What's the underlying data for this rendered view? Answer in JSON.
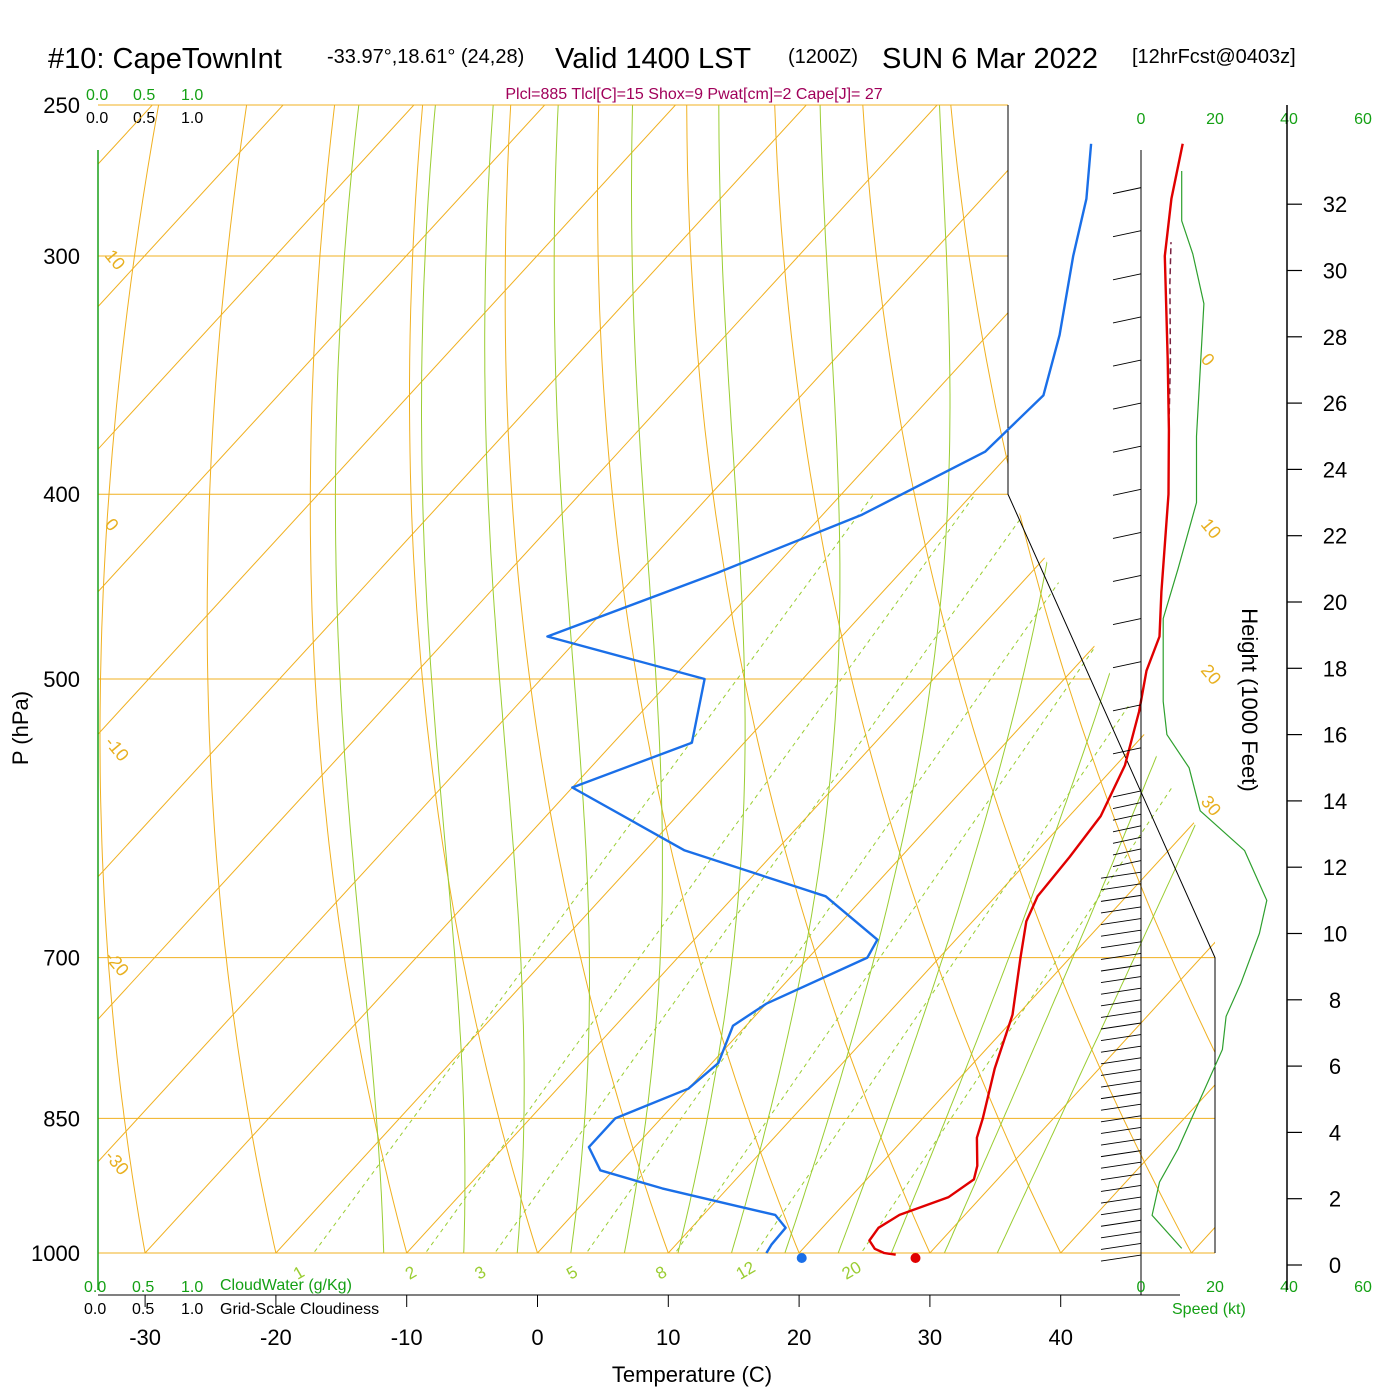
{
  "header": {
    "station": "#10: CapeTownInt",
    "coords": "-33.97°,18.61° (24,28)",
    "valid": "Valid 1400 LST",
    "utc": "(1200Z)",
    "date": "SUN 6 Mar 2022",
    "forecast": "[12hrFcst@0403z]",
    "indices": "Plcl=885 Tlcl[C]=15 Shox=9 Pwat[cm]=2 Cape[J]= 27"
  },
  "colors": {
    "temperature": "#e00000",
    "dewpoint": "#1a6fe8",
    "isotherm": "#f0b020",
    "mixing_ratio": "#9acd32",
    "adiabat": "#9acd32",
    "wind_speed": "#2ea02e",
    "indices": "#a0005a"
  },
  "scales": {
    "cloud_water_top": [
      "0.0",
      "0.5",
      "1.0"
    ],
    "cloudiness_top": [
      "0.0",
      "0.5",
      "1.0"
    ],
    "cloud_water_bottom": [
      "0.0",
      "0.5",
      "1.0"
    ],
    "cloudiness_bottom": [
      "0.0",
      "0.5",
      "1.0"
    ],
    "cloud_water_label": "CloudWater (g/Kg)",
    "cloudiness_label": "Grid-Scale Cloudiness",
    "speed_ticks": [
      "0",
      "20",
      "40",
      "60"
    ],
    "speed_label": "Speed (kt)"
  },
  "chart_data": {
    "type": "skew-t log-p sounding",
    "xlabel": "Temperature (C)",
    "ylabel": "P (hPa)",
    "height_label": "Height (1000 Feet)",
    "x_ticks": [
      -30,
      -20,
      -10,
      0,
      10,
      20,
      30,
      40
    ],
    "pressure_levels": [
      250,
      300,
      400,
      500,
      700,
      850,
      1000
    ],
    "xlim": [
      -34,
      36
    ],
    "plim": [
      250,
      1030
    ],
    "height_ticks_kft": [
      0,
      2,
      4,
      6,
      8,
      10,
      12,
      14,
      16,
      18,
      20,
      22,
      24,
      26,
      28,
      30,
      32
    ],
    "isotherm_labels": [
      {
        "t": 10,
        "p": 300,
        "text": "10"
      },
      {
        "t": 0,
        "p": 415,
        "text": "0"
      },
      {
        "t": -10,
        "p": 540,
        "text": "-10"
      },
      {
        "t": -20,
        "p": 700,
        "text": "-20"
      },
      {
        "t": -30,
        "p": 890,
        "text": "-30"
      },
      {
        "t": 0,
        "p": 340,
        "text": "0"
      },
      {
        "t": 10,
        "p": 415,
        "text": "10"
      },
      {
        "t": 20,
        "p": 495,
        "text": "20"
      },
      {
        "t": 30,
        "p": 580,
        "text": "30"
      }
    ],
    "mixing_ratio_labels": [
      "1",
      "2",
      "3",
      "5",
      "8",
      "12",
      "20"
    ],
    "temperature": [
      {
        "p": 1002,
        "t": 27.5
      },
      {
        "p": 1000,
        "t": 26.5
      },
      {
        "p": 995,
        "t": 25.5
      },
      {
        "p": 985,
        "t": 24.5
      },
      {
        "p": 970,
        "t": 24.3
      },
      {
        "p": 955,
        "t": 25.0
      },
      {
        "p": 935,
        "t": 27.5
      },
      {
        "p": 915,
        "t": 28.2
      },
      {
        "p": 900,
        "t": 27.5
      },
      {
        "p": 870,
        "t": 25.5
      },
      {
        "p": 850,
        "t": 24.6
      },
      {
        "p": 800,
        "t": 22.0
      },
      {
        "p": 750,
        "t": 19.6
      },
      {
        "p": 700,
        "t": 16.2
      },
      {
        "p": 670,
        "t": 14.1
      },
      {
        "p": 650,
        "t": 13.2
      },
      {
        "p": 620,
        "t": 12.9
      },
      {
        "p": 590,
        "t": 12.4
      },
      {
        "p": 555,
        "t": 10.7
      },
      {
        "p": 520,
        "t": 8.0
      },
      {
        "p": 495,
        "t": 5.7
      },
      {
        "p": 475,
        "t": 4.3
      },
      {
        "p": 450,
        "t": 1.3
      },
      {
        "p": 400,
        "t": -5.0
      },
      {
        "p": 370,
        "t": -9.5
      },
      {
        "p": 340,
        "t": -14.5
      },
      {
        "p": 300,
        "t": -22.0
      },
      {
        "p": 280,
        "t": -25.5
      },
      {
        "p": 262,
        "t": -28.5
      }
    ],
    "dewpoint": [
      {
        "p": 1000,
        "t": 17.5
      },
      {
        "p": 990,
        "t": 17.3
      },
      {
        "p": 970,
        "t": 17.2
      },
      {
        "p": 955,
        "t": 15.5
      },
      {
        "p": 945,
        "t": 12.0
      },
      {
        "p": 925,
        "t": 5.0
      },
      {
        "p": 905,
        "t": -1.0
      },
      {
        "p": 880,
        "t": -3.5
      },
      {
        "p": 850,
        "t": -3.5
      },
      {
        "p": 820,
        "t": 0.0
      },
      {
        "p": 795,
        "t": 0.5
      },
      {
        "p": 760,
        "t": -1.0
      },
      {
        "p": 740,
        "t": 0.0
      },
      {
        "p": 700,
        "t": 4.5
      },
      {
        "p": 685,
        "t": 4.0
      },
      {
        "p": 650,
        "t": -3.0
      },
      {
        "p": 615,
        "t": -17.0
      },
      {
        "p": 570,
        "t": -30.0
      },
      {
        "p": 540,
        "t": -24.0
      },
      {
        "p": 500,
        "t": -27.5
      },
      {
        "p": 475,
        "t": -42.5
      },
      {
        "p": 440,
        "t": -34.0
      },
      {
        "p": 410,
        "t": -27.0
      },
      {
        "p": 380,
        "t": -22.0
      },
      {
        "p": 355,
        "t": -21.5
      },
      {
        "p": 330,
        "t": -24.5
      },
      {
        "p": 300,
        "t": -29.0
      },
      {
        "p": 280,
        "t": -32.0
      },
      {
        "p": 262,
        "t": -35.5
      }
    ],
    "parcel": [
      {
        "p": 400,
        "t": -5.0
      },
      {
        "p": 370,
        "t": -9.5
      },
      {
        "p": 340,
        "t": -14.3
      },
      {
        "p": 310,
        "t": -19.7
      },
      {
        "p": 295,
        "t": -22.5
      }
    ],
    "surface_temperature": 28.9,
    "surface_dewpoint": 20.2,
    "wind_speed_kt": [
      {
        "h": 0.5,
        "s": 11
      },
      {
        "h": 1.5,
        "s": 3
      },
      {
        "h": 2.5,
        "s": 5
      },
      {
        "h": 3.5,
        "s": 10
      },
      {
        "h": 4.5,
        "s": 14
      },
      {
        "h": 6.5,
        "s": 22
      },
      {
        "h": 7.5,
        "s": 23
      },
      {
        "h": 8.5,
        "s": 27
      },
      {
        "h": 10.0,
        "s": 32
      },
      {
        "h": 11.0,
        "s": 34
      },
      {
        "h": 12.5,
        "s": 28
      },
      {
        "h": 13.7,
        "s": 16
      },
      {
        "h": 15.0,
        "s": 13
      },
      {
        "h": 16.0,
        "s": 7
      },
      {
        "h": 17.0,
        "s": 6
      },
      {
        "h": 18.5,
        "s": 6
      },
      {
        "h": 19.5,
        "s": 6
      },
      {
        "h": 21.0,
        "s": 10
      },
      {
        "h": 23.0,
        "s": 15
      },
      {
        "h": 25.0,
        "s": 15
      },
      {
        "h": 27.0,
        "s": 16
      },
      {
        "h": 29.0,
        "s": 17
      },
      {
        "h": 30.5,
        "s": 14
      },
      {
        "h": 31.5,
        "s": 11
      },
      {
        "h": 33.0,
        "s": 11
      }
    ]
  }
}
